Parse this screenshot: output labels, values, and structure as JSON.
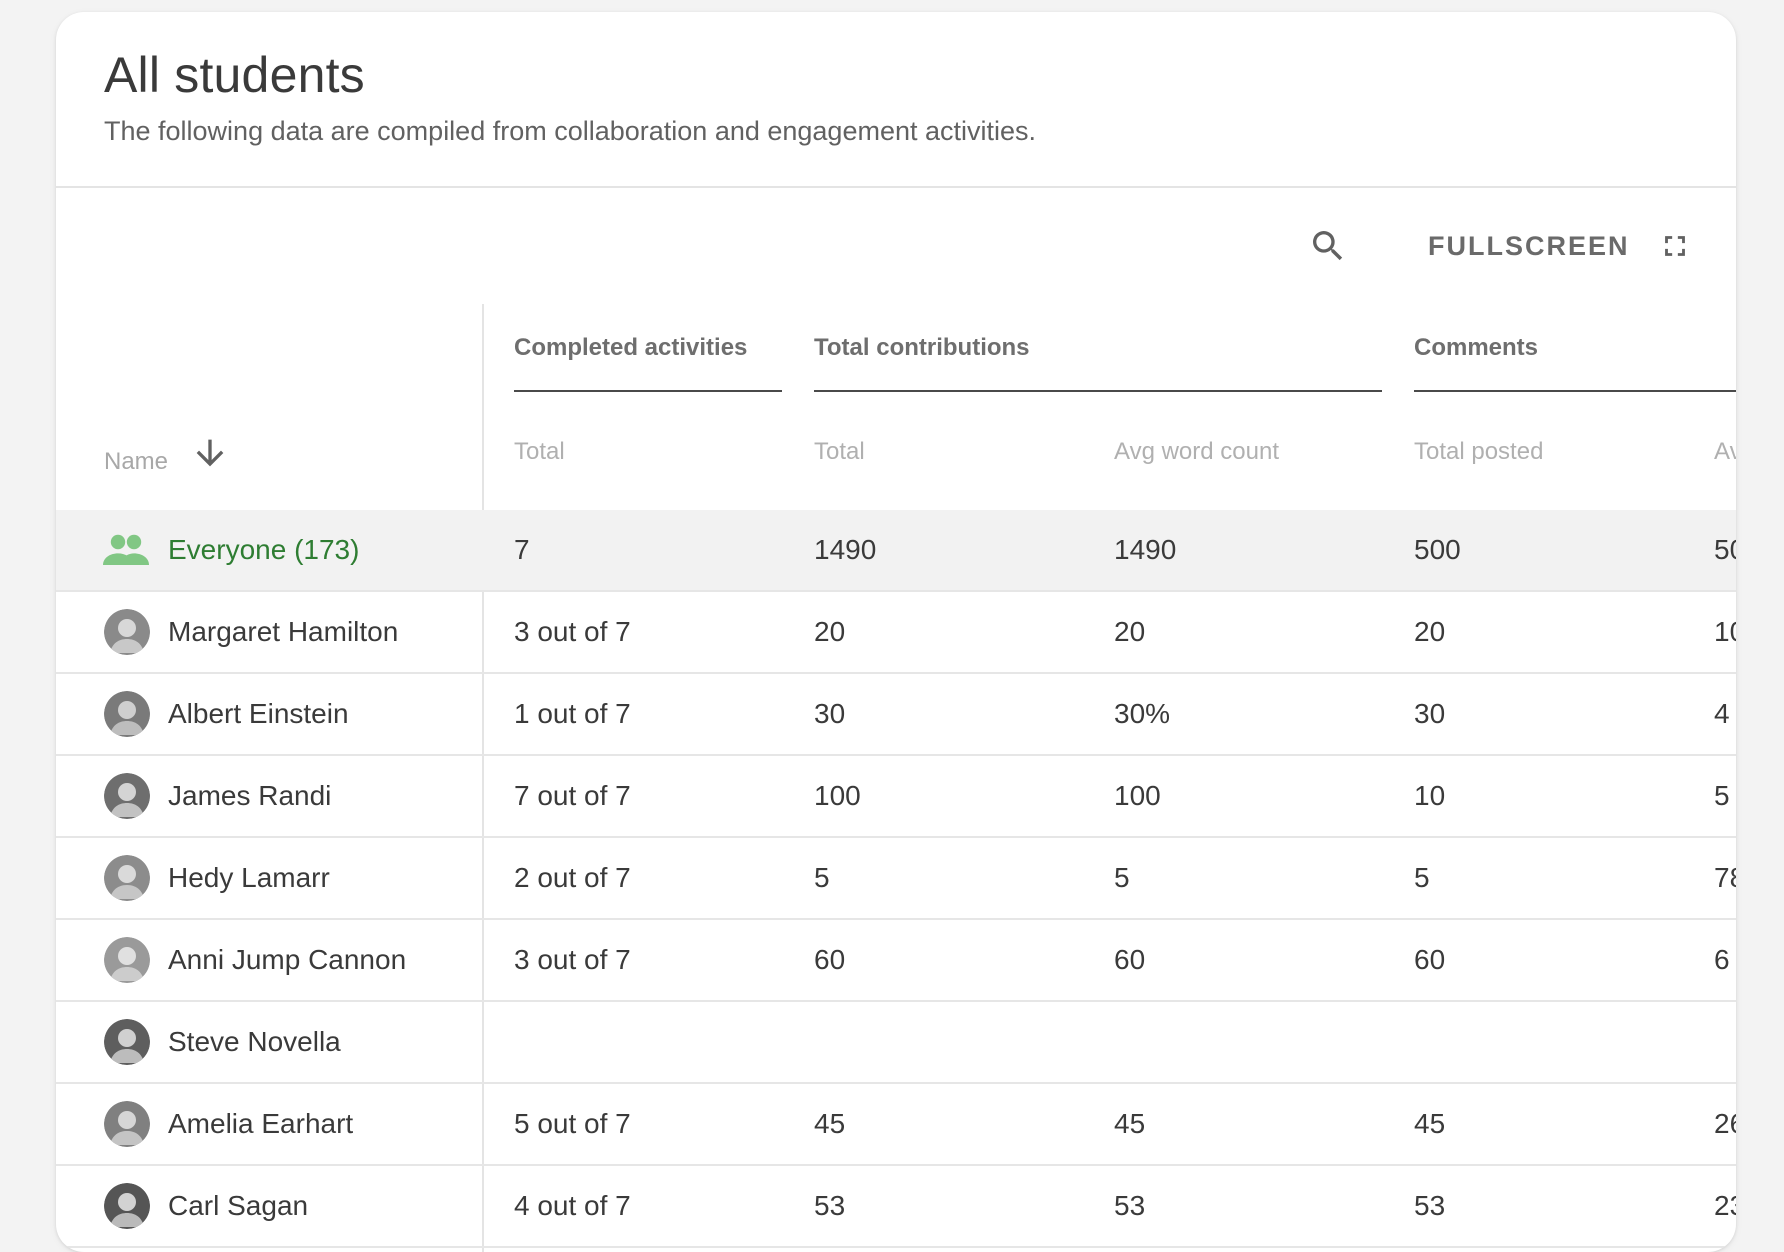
{
  "header": {
    "title": "All students",
    "subtitle": "The following data are compiled from collaboration and engagement activities."
  },
  "toolbar": {
    "search_icon": "search-icon",
    "fullscreen_label": "FULLSCREEN",
    "fullscreen_icon": "fullscreen-icon"
  },
  "colors": {
    "accent_green": "#2e7d32",
    "group_icon_green": "#81c784",
    "card_bg": "#ffffff",
    "page_bg": "#f3f3f3"
  },
  "table": {
    "name_header": "Name",
    "sort_icon": "arrow-down-icon",
    "groups": [
      "Completed activities",
      "Total contributions",
      "Comments"
    ],
    "sub_headers": [
      "Total",
      "Total",
      "Avg word count",
      "Total posted",
      "Av"
    ],
    "everyone": {
      "label": "Everyone (173)",
      "icon": "group-icon",
      "values": [
        "7",
        "1490",
        "1490",
        "500",
        "50"
      ]
    },
    "rows": [
      {
        "name": "Margaret Hamilton",
        "values": [
          "3 out of 7",
          "20",
          "20",
          "20",
          "10"
        ]
      },
      {
        "name": "Albert Einstein",
        "values": [
          "1 out of 7",
          "30",
          "30%",
          "30",
          "4"
        ]
      },
      {
        "name": "James Randi",
        "values": [
          "7 out of 7",
          "100",
          "100",
          "10",
          "5"
        ]
      },
      {
        "name": "Hedy Lamarr",
        "values": [
          "2 out of 7",
          "5",
          "5",
          "5",
          "78"
        ]
      },
      {
        "name": "Anni Jump Cannon",
        "values": [
          "3 out of 7",
          "60",
          "60",
          "60",
          "6"
        ]
      },
      {
        "name": "Steve Novella",
        "values": [
          "",
          "",
          "",
          "",
          ""
        ]
      },
      {
        "name": "Amelia Earhart",
        "values": [
          "5 out of 7",
          "45",
          "45",
          "45",
          "26"
        ]
      },
      {
        "name": "Carl Sagan",
        "values": [
          "4 out of 7",
          "53",
          "53",
          "53",
          "23"
        ]
      }
    ]
  }
}
